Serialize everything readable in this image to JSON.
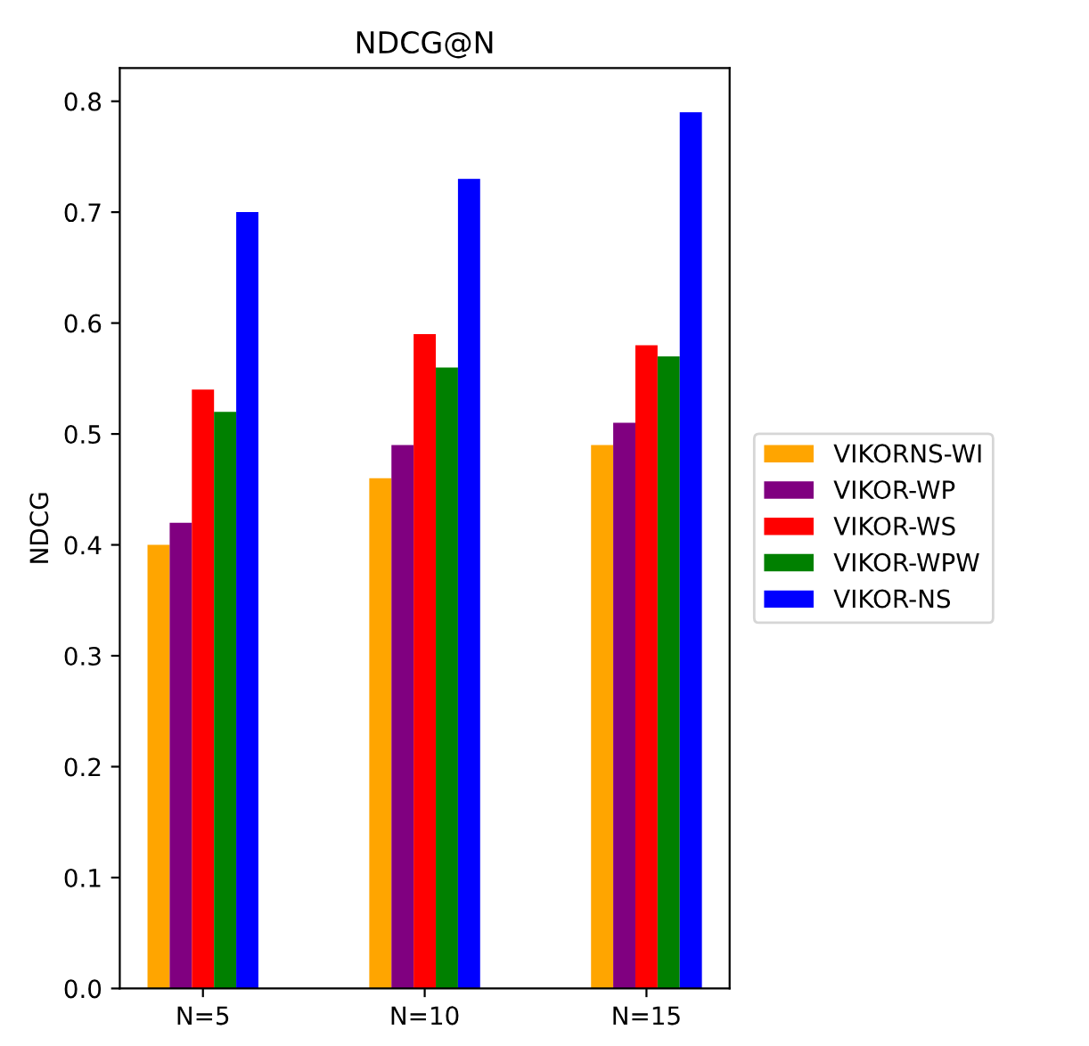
{
  "chart_data": {
    "type": "bar",
    "title": "NDCG@N",
    "ylabel": "NDCG",
    "categories": [
      "N=5",
      "N=10",
      "N=15"
    ],
    "series": [
      {
        "name": "VIKORNS-WI",
        "color": "#ffa500",
        "values": [
          0.4,
          0.46,
          0.49
        ]
      },
      {
        "name": "VIKOR-WP",
        "color": "#800080",
        "values": [
          0.42,
          0.49,
          0.51
        ]
      },
      {
        "name": "VIKOR-WS",
        "color": "#ff0000",
        "values": [
          0.54,
          0.59,
          0.58
        ]
      },
      {
        "name": "VIKOR-WPW",
        "color": "#008000",
        "values": [
          0.52,
          0.56,
          0.57
        ]
      },
      {
        "name": "VIKOR-NS",
        "color": "#0000ff",
        "values": [
          0.7,
          0.73,
          0.79
        ]
      }
    ],
    "ylim": [
      0,
      0.83
    ],
    "yticks": [
      {
        "value": 0,
        "label": "0.0"
      },
      0.1,
      0.2,
      0.3,
      0.4,
      0.5,
      0.6,
      0.7,
      0.8
    ],
    "legend": "right",
    "grid": false
  }
}
